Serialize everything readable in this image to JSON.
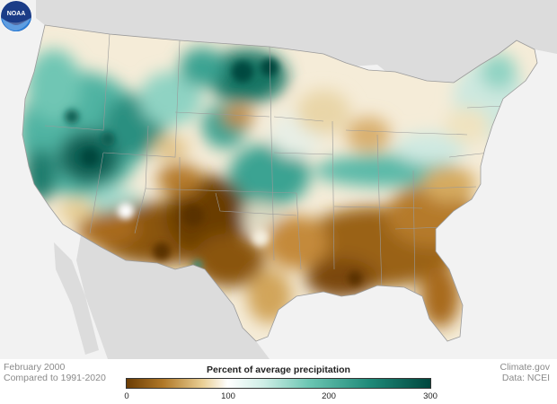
{
  "map": {
    "period": "February 2000",
    "baseline": "Compared to 1991-2020",
    "credit_site": "Climate.gov",
    "credit_data": "Data: NCEI",
    "legend": {
      "title": "Percent of average precipitation",
      "ticks": [
        "0",
        "100",
        "200",
        "300"
      ],
      "min": 0,
      "max": 300
    },
    "colors": {
      "dry": "#6b3d05",
      "normal": "#ffffff",
      "wet": "#00473e",
      "ocean": "#f2f2f2",
      "land_outside": "#dcdcdc"
    },
    "logo_text": "NOAA"
  }
}
